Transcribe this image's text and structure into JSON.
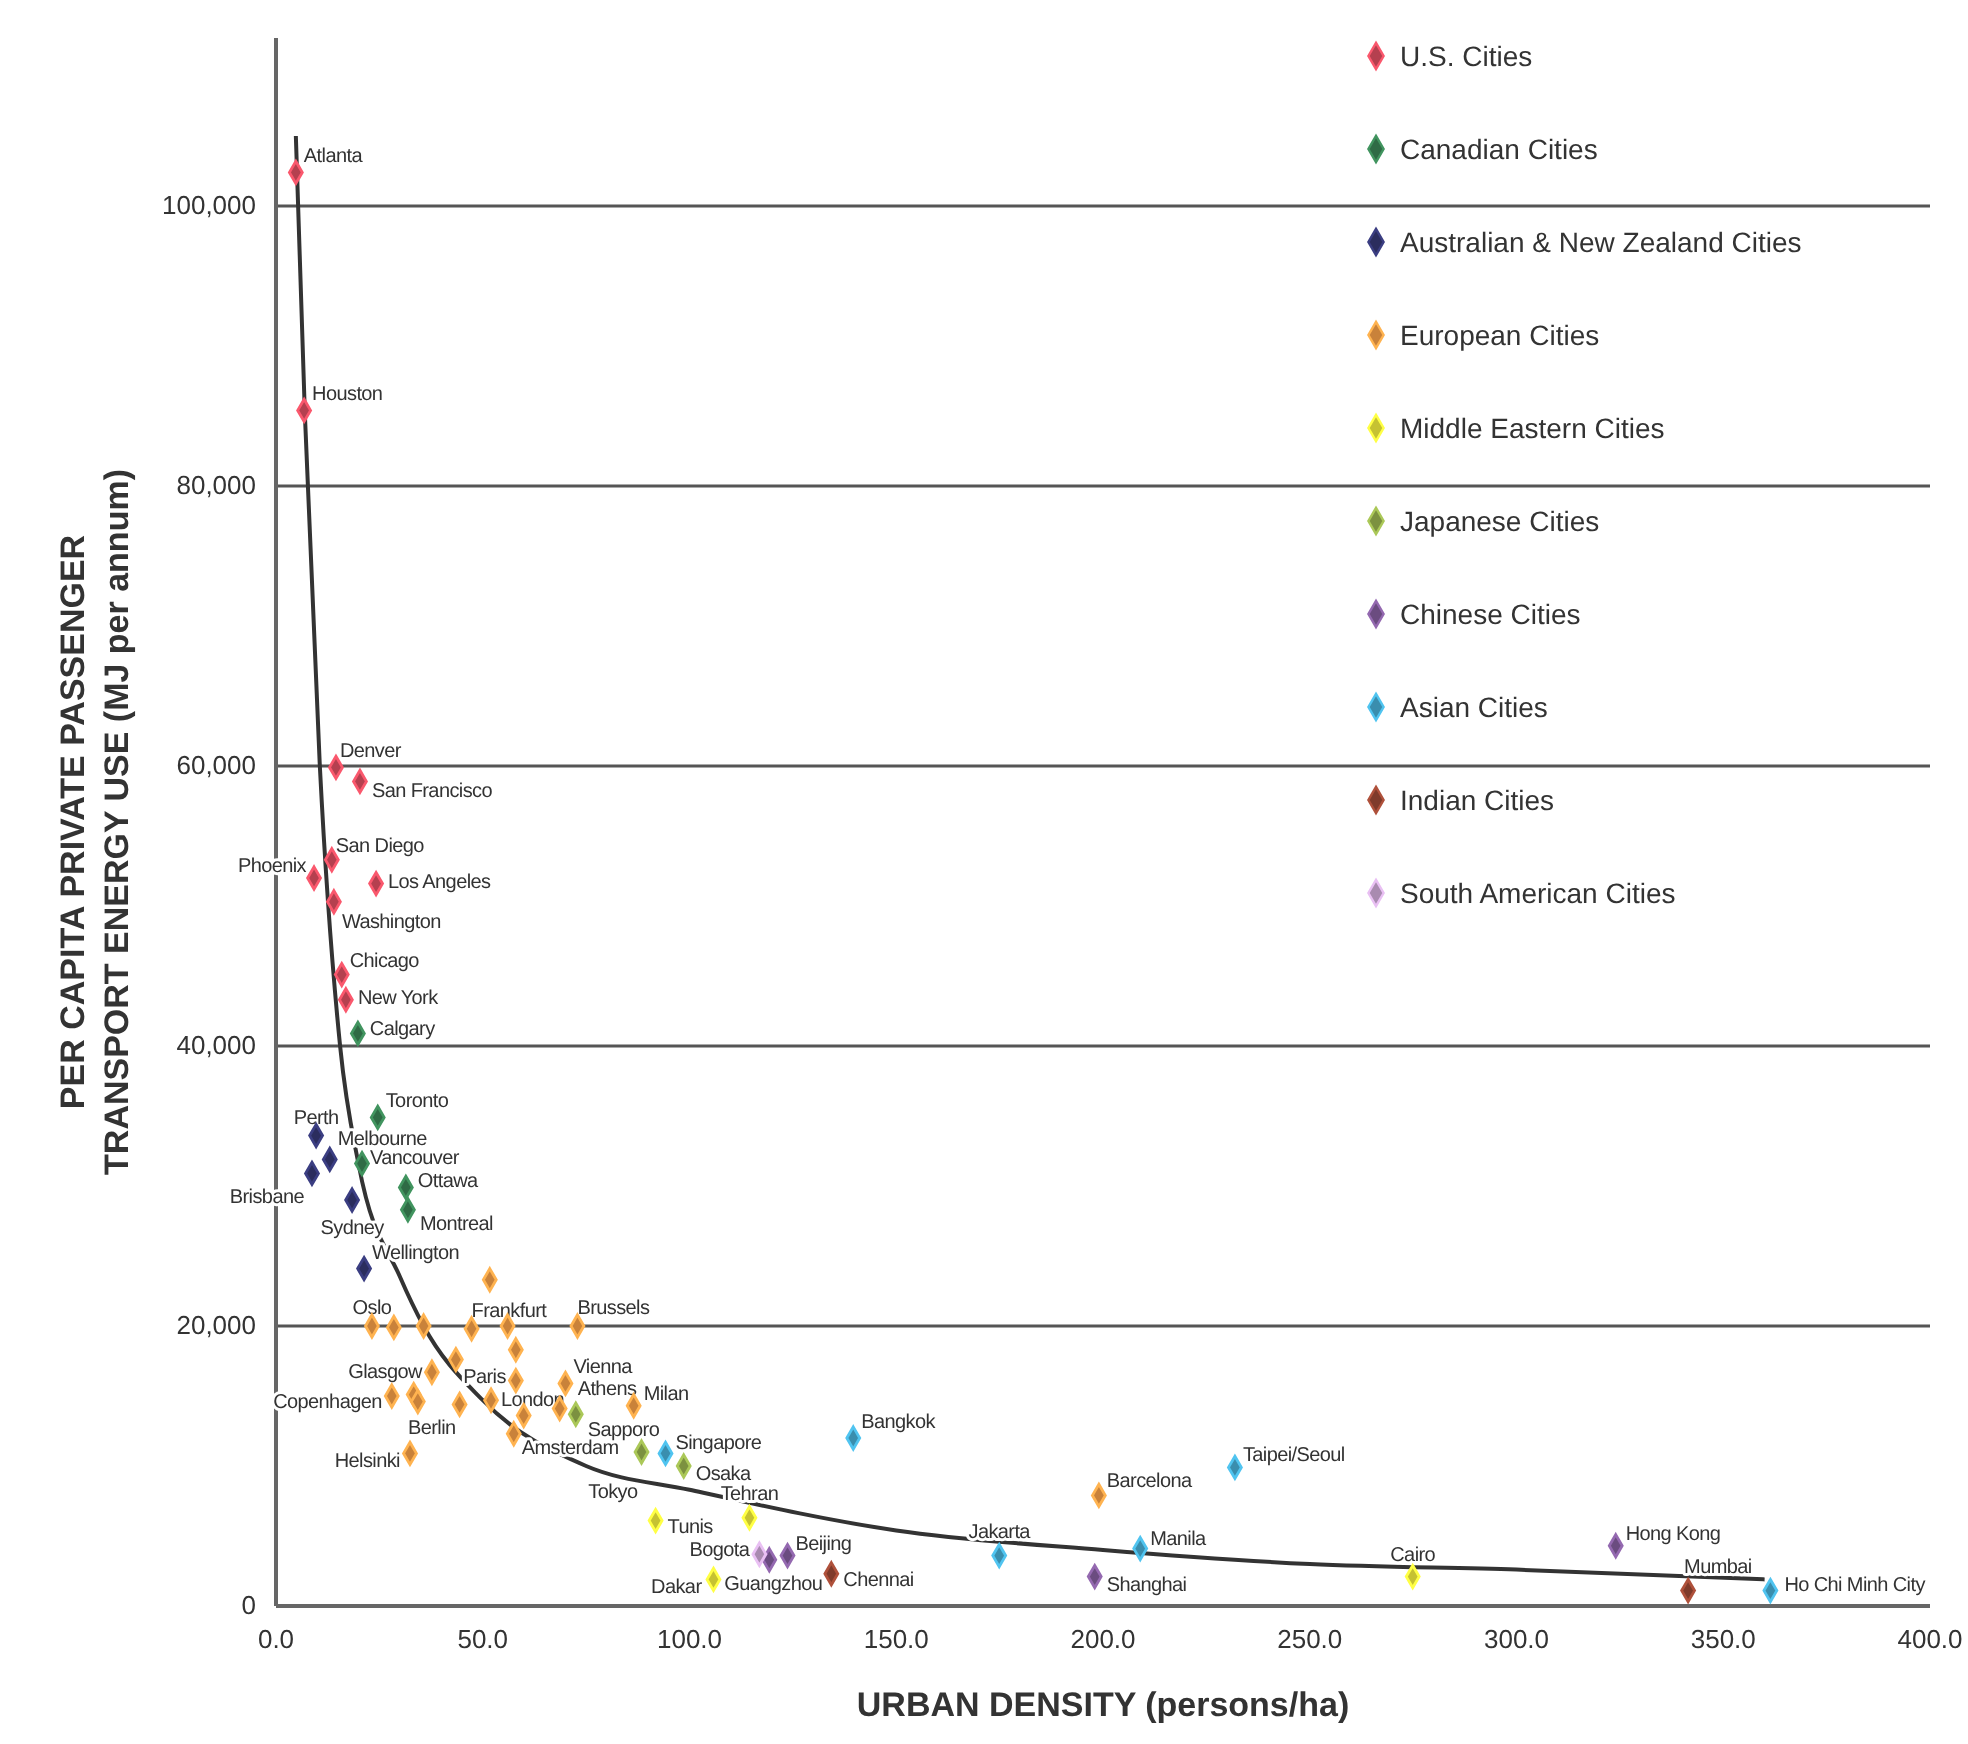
{
  "chart_data": {
    "type": "scatter",
    "xlabel": "URBAN DENSITY (persons/ha)",
    "ylabel": "PER CAPITA PRIVATE PASSENGER TRANSPORT ENERGY USE (MJ per annum)",
    "xlim": [
      0,
      400
    ],
    "ylim": [
      0,
      112000
    ],
    "xticks": [
      {
        "value": 0,
        "label": "0.0"
      },
      {
        "value": 50,
        "label": "50.0"
      },
      {
        "value": 100,
        "label": "100.0"
      },
      {
        "value": 150,
        "label": "150.0"
      },
      {
        "value": 200,
        "label": "200.0"
      },
      {
        "value": 250,
        "label": "250.0"
      },
      {
        "value": 300,
        "label": "300.0"
      },
      {
        "value": 350,
        "label": "350.0"
      },
      {
        "value": 400,
        "label": "400.0"
      }
    ],
    "yticks": [
      0,
      {
        "value": 20000,
        "label": "20,000"
      },
      {
        "value": 40000,
        "label": "40,000"
      },
      {
        "value": 60000,
        "label": "60,000"
      },
      {
        "value": 80000,
        "label": "80,000"
      },
      {
        "value": 100000,
        "label": "100,000"
      }
    ],
    "grid": "y",
    "legend": "top right",
    "marker": "diamond",
    "series": [
      {
        "name": "U.S. Cities",
        "color": "#b5404f",
        "x": [
          4.8,
          6.8,
          14.5,
          20.3,
          13.5,
          9.2,
          24.2,
          14.0,
          15.9,
          16.9
        ],
        "values": [
          102400,
          85400,
          59900,
          58900,
          53300,
          52000,
          51600,
          50300,
          45100,
          43300
        ]
      },
      {
        "name": "Canadian Cities",
        "color": "#2f6b45",
        "x": [
          19.8,
          24.6,
          20.8,
          31.4,
          31.9
        ],
        "values": [
          40900,
          34900,
          31600,
          29900,
          28300
        ]
      },
      {
        "name": "Australian & New Zealand Cities",
        "color": "#2b2d5e",
        "x": [
          9.7,
          13.0,
          8.7,
          18.4,
          21.3
        ],
        "values": [
          33600,
          31900,
          30900,
          29000,
          24100
        ]
      },
      {
        "name": "European Cities",
        "color": "#c9823a",
        "x": [
          23.2,
          28.5,
          35.7,
          47.3,
          56,
          72.9,
          51.7,
          58,
          37.7,
          43.5,
          28,
          33.3,
          34.3,
          58,
          52,
          44.4,
          59.9,
          57.5,
          32.4,
          70,
          68.6,
          86.5,
          199
        ],
        "values": [
          20000,
          19900,
          20000,
          19800,
          20000,
          20000,
          23300,
          18300,
          16700,
          17600,
          15000,
          15100,
          14600,
          16100,
          14700,
          14400,
          13600,
          12300,
          10900,
          15900,
          14100,
          14300,
          7900
        ]
      },
      {
        "name": "Middle Eastern Cities",
        "color": "#c6c232",
        "x": [
          114.5,
          91.8,
          105.8,
          274.9
        ],
        "values": [
          6300,
          6100,
          1900,
          2100
        ]
      },
      {
        "name": "Japanese Cities",
        "color": "#7c9140",
        "x": [
          72.5,
          88.4,
          98.6
        ],
        "values": [
          13700,
          11000,
          10000
        ]
      },
      {
        "name": "Chinese Cities",
        "color": "#6b4c80",
        "x": [
          123.7,
          119.3,
          198,
          324
        ],
        "values": [
          3600,
          3300,
          2100,
          4300
        ]
      },
      {
        "name": "Asian Cities",
        "color": "#3a8eae",
        "x": [
          94.2,
          139.6,
          231.9,
          174.9,
          209,
          361.4
        ],
        "values": [
          10900,
          12000,
          9900,
          3600,
          4100,
          1100
        ]
      },
      {
        "name": "Indian Cities",
        "color": "#7f3b2b",
        "x": [
          134.3,
          341.5
        ],
        "values": [
          2300,
          1100
        ]
      },
      {
        "name": "South American Cities",
        "color": "#a98bb0",
        "x": [
          116.9
        ],
        "values": [
          3700
        ]
      },
      {
        "type": "line",
        "marker": "none",
        "color": "#333333",
        "x": [
          4.8,
          7,
          10.6,
          15.5,
          20,
          30,
          35.7,
          50,
          75,
          100,
          150,
          200,
          250,
          300,
          360
        ],
        "values": [
          105000,
          85000,
          60000,
          40000,
          31500,
          23500,
          20000,
          14700,
          10000,
          8300,
          5400,
          4000,
          3000,
          2600,
          1900
        ]
      }
    ],
    "annotations": [
      {
        "text": "Atlanta",
        "x": 4.8,
        "y": 102400
      },
      {
        "text": "Houston",
        "x": 6.8,
        "y": 85400
      },
      {
        "text": "Denver",
        "x": 14.5,
        "y": 59900
      },
      {
        "text": "San Francisco",
        "x": 20.3,
        "y": 58900
      },
      {
        "text": "San Diego",
        "x": 13.5,
        "y": 53300
      },
      {
        "text": "Phoenix",
        "x": 9.2,
        "y": 52000
      },
      {
        "text": "Los Angeles",
        "x": 24.2,
        "y": 51600
      },
      {
        "text": "Washington",
        "x": 14.0,
        "y": 50300
      },
      {
        "text": "Chicago",
        "x": 15.9,
        "y": 45100
      },
      {
        "text": "New York",
        "x": 16.9,
        "y": 43300
      },
      {
        "text": "Calgary",
        "x": 19.8,
        "y": 40900
      },
      {
        "text": "Toronto",
        "x": 24.6,
        "y": 34900
      },
      {
        "text": "Perth",
        "x": 9.7,
        "y": 33600
      },
      {
        "text": "Melbourne",
        "x": 13.0,
        "y": 31900
      },
      {
        "text": "Vancouver",
        "x": 20.8,
        "y": 31600
      },
      {
        "text": "Brisbane",
        "x": 8.7,
        "y": 30900
      },
      {
        "text": "Ottawa",
        "x": 31.4,
        "y": 29900
      },
      {
        "text": "Montreal",
        "x": 31.9,
        "y": 28300
      },
      {
        "text": "Sydney",
        "x": 18.4,
        "y": 29000
      },
      {
        "text": "Wellington",
        "x": 21.3,
        "y": 24100
      },
      {
        "text": "Oslo",
        "x": 23.2,
        "y": 20000
      },
      {
        "text": "Frankfurt",
        "x": 47.3,
        "y": 19800
      },
      {
        "text": "Brussels",
        "x": 72.9,
        "y": 20000
      },
      {
        "text": "Glasgow",
        "x": 37.7,
        "y": 16700
      },
      {
        "text": "Copenhagen",
        "x": 28,
        "y": 15000
      },
      {
        "text": "Paris",
        "x": 58,
        "y": 16100
      },
      {
        "text": "London",
        "x": 52,
        "y": 14700
      },
      {
        "text": "Berlin",
        "x": 44.4,
        "y": 14400
      },
      {
        "text": "Amsterdam",
        "x": 57.5,
        "y": 12300
      },
      {
        "text": "Helsinki",
        "x": 32.4,
        "y": 10900
      },
      {
        "text": "Vienna",
        "x": 70,
        "y": 15900
      },
      {
        "text": "Athens",
        "x": 68.6,
        "y": 14100
      },
      {
        "text": "Milan",
        "x": 86.5,
        "y": 14300
      },
      {
        "text": "Sapporo",
        "x": 72.5,
        "y": 13700
      },
      {
        "text": "Tokyo",
        "x": 88.4,
        "y": 11000
      },
      {
        "text": "Singapore",
        "x": 94.2,
        "y": 10900
      },
      {
        "text": "Osaka",
        "x": 98.6,
        "y": 10000
      },
      {
        "text": "Bangkok",
        "x": 139.6,
        "y": 12000
      },
      {
        "text": "Barcelona",
        "x": 199,
        "y": 7900
      },
      {
        "text": "Taipei/Seoul",
        "x": 231.9,
        "y": 9900
      },
      {
        "text": "Tehran",
        "x": 114.5,
        "y": 6300
      },
      {
        "text": "Tunis",
        "x": 91.8,
        "y": 6100
      },
      {
        "text": "Bogota",
        "x": 116.9,
        "y": 3700
      },
      {
        "text": "Beijing",
        "x": 123.7,
        "y": 3600
      },
      {
        "text": "Guangzhou",
        "x": 119.3,
        "y": 3300
      },
      {
        "text": "Dakar",
        "x": 105.8,
        "y": 1900
      },
      {
        "text": "Chennai",
        "x": 134.3,
        "y": 2300
      },
      {
        "text": "Jakarta",
        "x": 174.9,
        "y": 3600
      },
      {
        "text": "Manila",
        "x": 209,
        "y": 4100
      },
      {
        "text": "Shanghai",
        "x": 198,
        "y": 2100
      },
      {
        "text": "Cairo",
        "x": 274.9,
        "y": 2100
      },
      {
        "text": "Hong Kong",
        "x": 324,
        "y": 4300
      },
      {
        "text": "Mumbai",
        "x": 341.5,
        "y": 1100
      },
      {
        "text": "Ho Chi Minh City",
        "x": 361.4,
        "y": 1100
      }
    ]
  }
}
